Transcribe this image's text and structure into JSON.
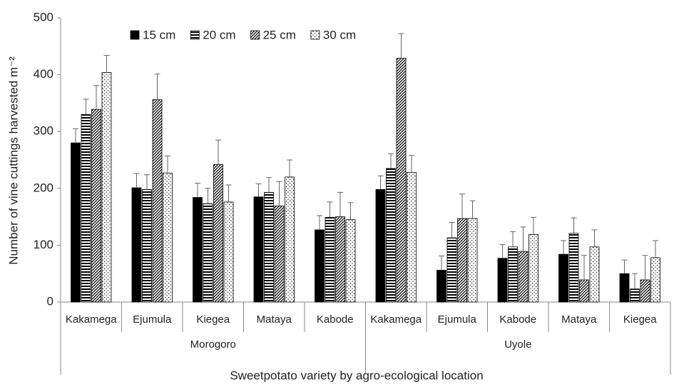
{
  "chart_data": {
    "type": "bar",
    "y_label": "Number  of vine cuttings harvested m⁻²",
    "x_label": "Sweetpotato variety by agro-ecological location",
    "groups": [
      {
        "name": "Morogoro",
        "categories": [
          "Kakamega",
          "Ejumula",
          "Kiegea",
          "Mataya",
          "Kabode"
        ]
      },
      {
        "name": "Uyole",
        "categories": [
          "Kakamega",
          "Ejumula",
          "Kabode",
          "Mataya",
          "Kiegea"
        ]
      }
    ],
    "series": [
      {
        "name": "15 cm",
        "color": "#000000",
        "pattern": "solid",
        "values": [
          280,
          201,
          184,
          185,
          127,
          198,
          56,
          77,
          84,
          50
        ],
        "errors": [
          25,
          25,
          25,
          23,
          25,
          24,
          25,
          24,
          24,
          24
        ]
      },
      {
        "name": "20 cm",
        "color": "#000000",
        "pattern": "horizontal",
        "values": [
          330,
          198,
          173,
          193,
          149,
          235,
          113,
          97,
          121,
          23
        ],
        "errors": [
          27,
          26,
          27,
          26,
          27,
          26,
          27,
          27,
          27,
          27
        ]
      },
      {
        "name": "25 cm",
        "color": "#000000",
        "pattern": "diagonal",
        "values": [
          339,
          356,
          242,
          169,
          150,
          429,
          147,
          89,
          39,
          39
        ],
        "errors": [
          42,
          45,
          43,
          43,
          43,
          43,
          43,
          43,
          43,
          43
        ]
      },
      {
        "name": "30 cm",
        "color": "#000000",
        "pattern": "dots",
        "values": [
          404,
          227,
          176,
          220,
          145,
          228,
          147,
          119,
          97,
          78
        ],
        "errors": [
          30,
          30,
          30,
          30,
          30,
          30,
          31,
          30,
          30,
          30
        ]
      }
    ],
    "ylim": [
      0,
      500
    ],
    "yticks": [
      0,
      100,
      200,
      300,
      400,
      500
    ],
    "grid": false,
    "legend": "top"
  }
}
